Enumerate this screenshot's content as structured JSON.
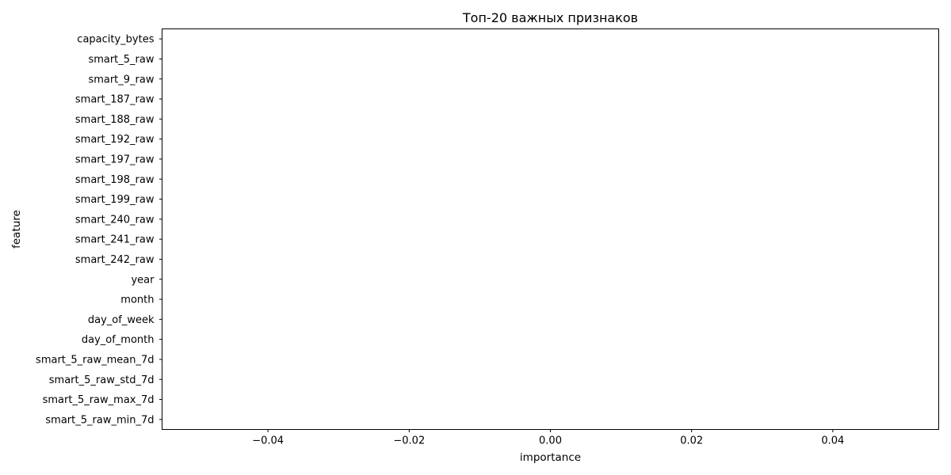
{
  "chart_data": {
    "type": "bar",
    "orientation": "horizontal",
    "title": "Топ-20 важных признаков",
    "xlabel": "importance",
    "ylabel": "feature",
    "categories": [
      "capacity_bytes",
      "smart_5_raw",
      "smart_9_raw",
      "smart_187_raw",
      "smart_188_raw",
      "smart_192_raw",
      "smart_197_raw",
      "smart_198_raw",
      "smart_199_raw",
      "smart_240_raw",
      "smart_241_raw",
      "smart_242_raw",
      "year",
      "month",
      "day_of_week",
      "day_of_month",
      "smart_5_raw_mean_7d",
      "smart_5_raw_std_7d",
      "smart_5_raw_max_7d",
      "smart_5_raw_min_7d"
    ],
    "values": [
      0,
      0,
      0,
      0,
      0,
      0,
      0,
      0,
      0,
      0,
      0,
      0,
      0,
      0,
      0,
      0,
      0,
      0,
      0,
      0
    ],
    "xlim": [
      -0.055,
      0.055
    ],
    "xticks": [
      -0.04,
      -0.02,
      0.0,
      0.02,
      0.04
    ],
    "xtick_labels": [
      "−0.04",
      "−0.02",
      "0.00",
      "0.02",
      "0.04"
    ],
    "grid": false,
    "legend": "none",
    "colors": {
      "bar": "#1f77b4",
      "axes": "#000000",
      "background": "#ffffff"
    }
  }
}
